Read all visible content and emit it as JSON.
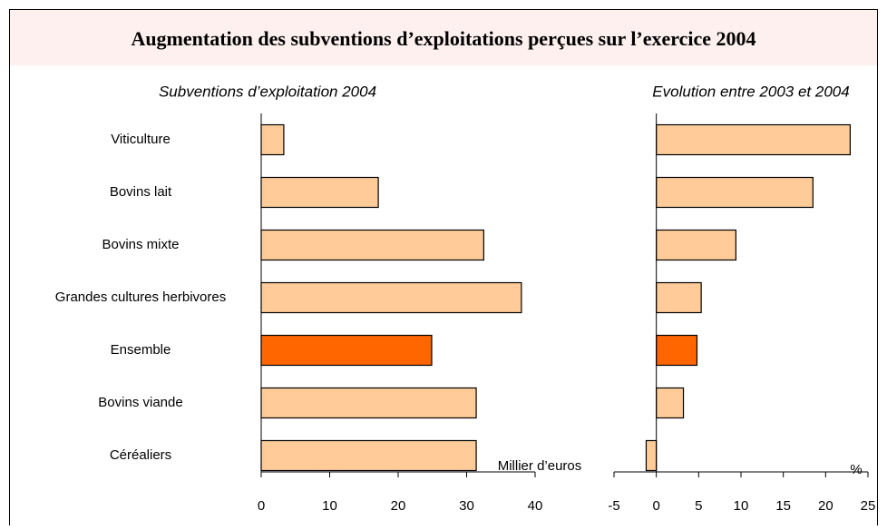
{
  "title": "Augmentation des subventions d’exploitations perçues sur l’exercice 2004",
  "chart_data": [
    {
      "type": "bar",
      "orientation": "horizontal",
      "subtitle": "Subventions d’exploitation 2004",
      "unit_label": "Millier d’euros",
      "categories": [
        "Viticulture",
        "Bovins lait",
        "Bovins mixte",
        "Grandes cultures herbivores",
        "Ensemble",
        "Bovins viande",
        "Céréaliers"
      ],
      "values": [
        3.3,
        17.1,
        32.5,
        38,
        24.9,
        31.4,
        31.4
      ],
      "colors": [
        "#ffcc99",
        "#ffcc99",
        "#ffcc99",
        "#ffcc99",
        "#ff6600",
        "#ffcc99",
        "#ffcc99"
      ],
      "xlim": [
        0,
        40
      ],
      "xticks": [
        0,
        10,
        20,
        30,
        40
      ]
    },
    {
      "type": "bar",
      "orientation": "horizontal",
      "subtitle": "Evolution entre 2003 et 2004",
      "unit_label": "%",
      "values": [
        22.9,
        18.5,
        9.4,
        5.3,
        4.8,
        3.2,
        -1.2
      ],
      "colors": [
        "#ffcc99",
        "#ffcc99",
        "#ffcc99",
        "#ffcc99",
        "#ff6600",
        "#ffcc99",
        "#ffcc99"
      ],
      "xlim": [
        -5,
        25
      ],
      "xticks": [
        -5,
        0,
        5,
        10,
        15,
        20,
        25
      ]
    }
  ]
}
